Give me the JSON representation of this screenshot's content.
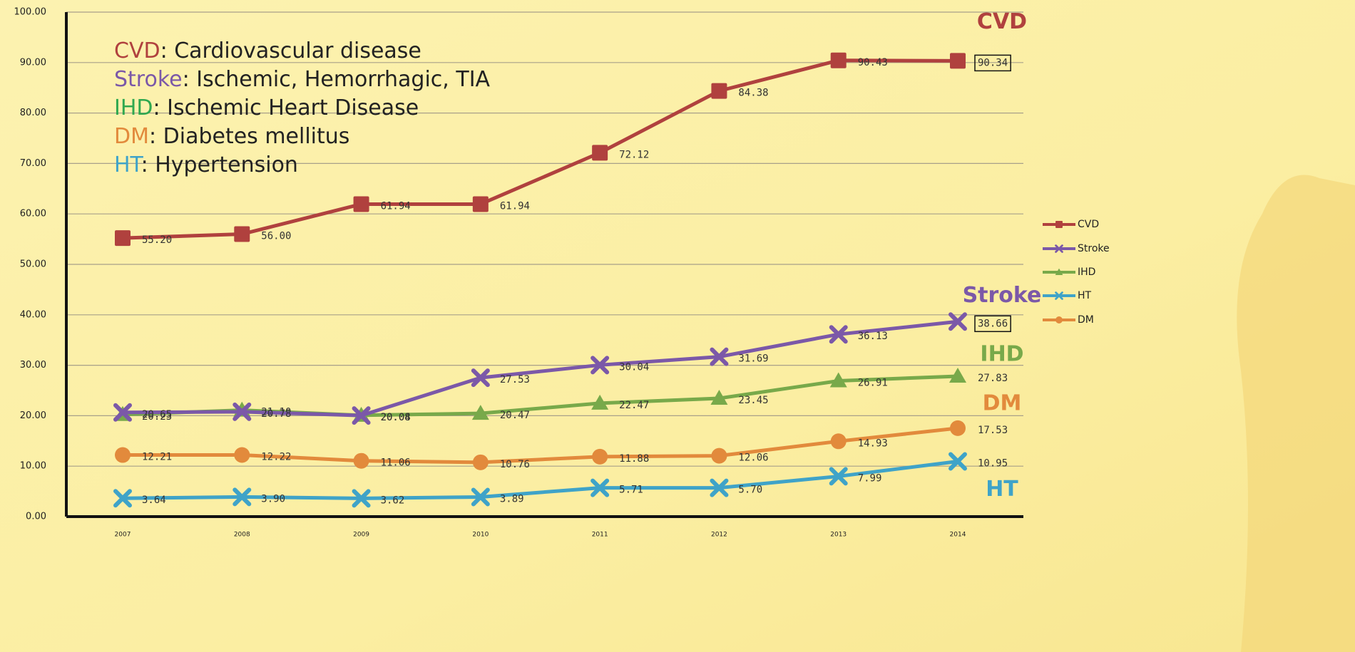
{
  "chart_data": {
    "type": "line",
    "categories": [
      "2007",
      "2008",
      "2009",
      "2010",
      "2011",
      "2012",
      "2013",
      "2014"
    ],
    "ylim": [
      0,
      100
    ],
    "yticks": [
      {
        "value": 0,
        "label": "0.00"
      },
      {
        "value": 10,
        "label": "10.00"
      },
      {
        "value": 20,
        "label": "20.00"
      },
      {
        "value": 30,
        "label": "30.00"
      },
      {
        "value": 40,
        "label": "40.00"
      },
      {
        "value": 50,
        "label": "50.00"
      },
      {
        "value": 60,
        "label": "60.00"
      },
      {
        "value": 70,
        "label": "70.00"
      },
      {
        "value": 80,
        "label": "80.00"
      },
      {
        "value": 90,
        "label": "90.00"
      },
      {
        "value": 100,
        "label": "100.00"
      }
    ],
    "grid": true,
    "legend": "right",
    "series": [
      {
        "name": "CVD",
        "color": "#b0413e",
        "marker": "square",
        "box_last": true,
        "values": [
          55.2,
          56,
          61.94,
          61.94,
          72.12,
          84.38,
          90.43,
          90.34
        ],
        "value_labels": [
          "55.20",
          "56.00",
          "61.94",
          "61.94",
          "72.12",
          "84.38",
          "90.43",
          "90.34"
        ]
      },
      {
        "name": "IHD",
        "color": "#78a94a",
        "marker": "triangle",
        "box_last": false,
        "values": [
          20.23,
          21.1,
          20.08,
          20.47,
          22.47,
          23.45,
          26.91,
          27.83
        ],
        "value_labels": [
          "20.23",
          "21.10",
          "20.08",
          "20.47",
          "22.47",
          "23.45",
          "26.91",
          "27.83"
        ]
      },
      {
        "name": "Stroke",
        "color": "#7b58a8",
        "marker": "x",
        "box_last": true,
        "values": [
          20.65,
          20.78,
          20.04,
          27.53,
          30.04,
          31.69,
          36.13,
          38.66
        ],
        "value_labels": [
          "20.65",
          "20.78",
          "20.04",
          "27.53",
          "30.04",
          "31.69",
          "36.13",
          "38.66"
        ]
      },
      {
        "name": "HT",
        "color": "#3fa3c8",
        "marker": "x",
        "box_last": false,
        "values": [
          3.64,
          3.9,
          3.62,
          3.89,
          5.71,
          5.7,
          7.99,
          10.95
        ],
        "value_labels": [
          "3.64",
          "3.90",
          "3.62",
          "3.89",
          "5.71",
          "5.70",
          "7.99",
          "10.95"
        ]
      },
      {
        "name": "DM",
        "color": "#e28a3c",
        "marker": "circle",
        "box_last": false,
        "values": [
          12.21,
          12.22,
          11.06,
          10.76,
          11.88,
          12.06,
          14.93,
          17.53
        ],
        "value_labels": [
          "12.21",
          "12.22",
          "11.06",
          "10.76",
          "11.88",
          "12.06",
          "14.93",
          "17.53"
        ]
      }
    ],
    "definitions": [
      {
        "term": "CVD",
        "text": ": Cardiovascular disease",
        "color": "#b0413e"
      },
      {
        "term": "Stroke",
        "text": ": Ischemic, Hemorrhagic, TIA",
        "color": "#7b58a8"
      },
      {
        "term": "IHD",
        "text": ": Ischemic Heart Disease",
        "color": "#2fa84f"
      },
      {
        "term": "DM",
        "text": ": Diabetes mellitus",
        "color": "#e28a3c"
      },
      {
        "term": "HT",
        "text": ": Hypertension",
        "color": "#3fa3c8"
      }
    ]
  }
}
